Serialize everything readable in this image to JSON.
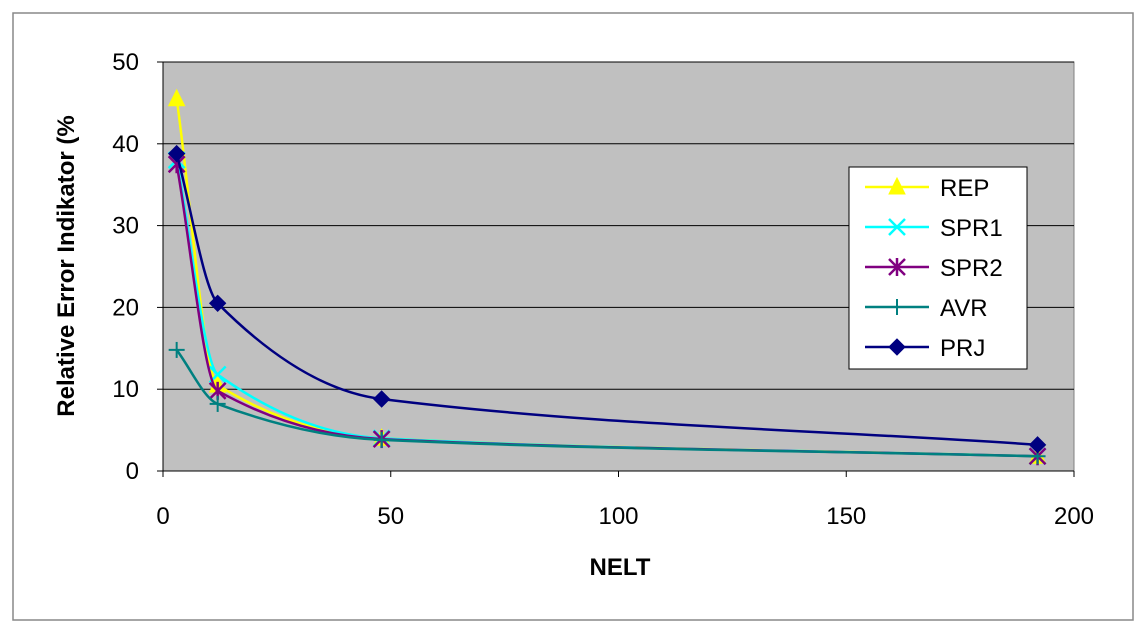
{
  "chart_data": {
    "type": "line",
    "title": "",
    "xlabel": "NELT",
    "ylabel": "Relative Error Indikator (%",
    "xlim": [
      0,
      200
    ],
    "ylim": [
      0,
      50
    ],
    "xticks": [
      0,
      50,
      100,
      150,
      200
    ],
    "yticks": [
      0,
      10,
      20,
      30,
      40,
      50
    ],
    "grid": "horizontal",
    "plot_background": "#c0c0c0",
    "legend_position": "right",
    "series": [
      {
        "name": "REP",
        "color": "#ffff00",
        "marker": "triangle",
        "x": [
          3,
          12,
          48,
          192
        ],
        "y": [
          45.5,
          10.5,
          4.0,
          1.8
        ]
      },
      {
        "name": "SPR1",
        "color": "#00ffff",
        "marker": "x",
        "x": [
          3,
          12,
          48,
          192
        ],
        "y": [
          38.0,
          11.8,
          4.0,
          1.8
        ]
      },
      {
        "name": "SPR2",
        "color": "#800080",
        "marker": "asterisk",
        "x": [
          3,
          12,
          48,
          192
        ],
        "y": [
          37.5,
          9.8,
          3.9,
          1.8
        ]
      },
      {
        "name": "AVR",
        "color": "#008080",
        "marker": "plus",
        "x": [
          3,
          12,
          48,
          192
        ],
        "y": [
          14.8,
          8.2,
          3.8,
          1.8
        ]
      },
      {
        "name": "PRJ",
        "color": "#000080",
        "marker": "diamond",
        "x": [
          3,
          12,
          48,
          192
        ],
        "y": [
          38.8,
          20.5,
          8.8,
          3.2
        ]
      }
    ]
  }
}
